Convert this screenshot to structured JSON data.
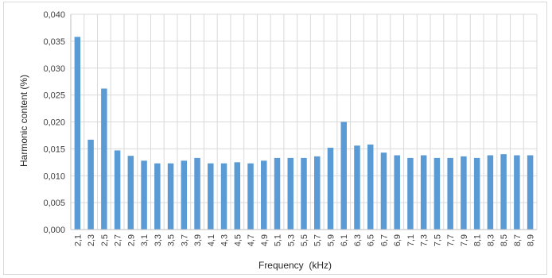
{
  "chart_data": {
    "type": "bar",
    "xlabel": "Frequency  (kHz)",
    "ylabel": "Harmonic content (%)",
    "ylim": [
      0,
      0.04
    ],
    "yticks": [
      "0,000",
      "0,005",
      "0,010",
      "0,015",
      "0,020",
      "0,025",
      "0,030",
      "0,035",
      "0,040"
    ],
    "categories": [
      "2,1",
      "2,3",
      "2,5",
      "2,7",
      "2,9",
      "3,1",
      "3,3",
      "3,5",
      "3,7",
      "3,9",
      "4,1",
      "4,3",
      "4,5",
      "4,7",
      "4,9",
      "5,1",
      "5,3",
      "5,5",
      "5,7",
      "5,9",
      "6,1",
      "6,3",
      "6,5",
      "6,7",
      "6,9",
      "7,1",
      "7,3",
      "7,5",
      "7,7",
      "7,9",
      "8,1",
      "8,3",
      "8,5",
      "8,7",
      "8,9"
    ],
    "values": [
      0.0358,
      0.0167,
      0.0262,
      0.0147,
      0.0137,
      0.0128,
      0.0123,
      0.0123,
      0.0128,
      0.0133,
      0.0123,
      0.0123,
      0.0125,
      0.0123,
      0.0128,
      0.0133,
      0.0133,
      0.0133,
      0.0136,
      0.0152,
      0.02,
      0.0156,
      0.0158,
      0.0143,
      0.0138,
      0.0133,
      0.0138,
      0.0133,
      0.0133,
      0.0136,
      0.0133,
      0.0138,
      0.014,
      0.0138,
      0.0138
    ],
    "grid": true,
    "bar_color": "#5b9bd5",
    "grid_color": "#d9d9d9"
  }
}
